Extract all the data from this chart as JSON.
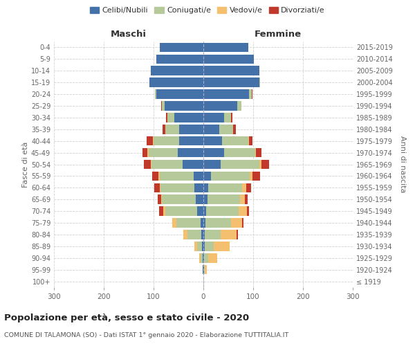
{
  "age_groups": [
    "100+",
    "95-99",
    "90-94",
    "85-89",
    "80-84",
    "75-79",
    "70-74",
    "65-69",
    "60-64",
    "55-59",
    "50-54",
    "45-49",
    "40-44",
    "35-39",
    "30-34",
    "25-29",
    "20-24",
    "15-19",
    "10-14",
    "5-9",
    "0-4"
  ],
  "birth_years": [
    "≤ 1919",
    "1920-1924",
    "1925-1929",
    "1930-1934",
    "1935-1939",
    "1940-1944",
    "1945-1949",
    "1950-1954",
    "1955-1959",
    "1960-1964",
    "1965-1969",
    "1970-1974",
    "1975-1979",
    "1980-1984",
    "1985-1989",
    "1990-1994",
    "1995-1999",
    "2000-2004",
    "2005-2009",
    "2010-2014",
    "2015-2019"
  ],
  "males": {
    "celibe": [
      0,
      1,
      2,
      3,
      4,
      6,
      12,
      15,
      18,
      20,
      42,
      52,
      48,
      48,
      58,
      78,
      95,
      108,
      105,
      95,
      87
    ],
    "coniugato": [
      0,
      1,
      4,
      10,
      28,
      48,
      65,
      68,
      68,
      68,
      62,
      58,
      52,
      28,
      14,
      5,
      2,
      0,
      0,
      0,
      0
    ],
    "vedovo": [
      0,
      0,
      2,
      5,
      8,
      8,
      4,
      2,
      2,
      2,
      2,
      2,
      1,
      0,
      0,
      0,
      0,
      0,
      0,
      0,
      0
    ],
    "divorziato": [
      0,
      0,
      0,
      0,
      0,
      1,
      8,
      6,
      10,
      13,
      13,
      10,
      13,
      6,
      3,
      2,
      0,
      0,
      0,
      0,
      0
    ]
  },
  "females": {
    "nubile": [
      0,
      1,
      2,
      3,
      3,
      4,
      6,
      8,
      10,
      15,
      35,
      42,
      38,
      32,
      42,
      68,
      92,
      112,
      112,
      102,
      90
    ],
    "coniugata": [
      0,
      2,
      8,
      18,
      32,
      52,
      65,
      65,
      68,
      78,
      78,
      62,
      52,
      28,
      14,
      8,
      5,
      2,
      0,
      0,
      0
    ],
    "vedova": [
      1,
      4,
      18,
      32,
      32,
      22,
      16,
      10,
      8,
      5,
      3,
      2,
      1,
      0,
      0,
      0,
      0,
      0,
      0,
      0,
      0
    ],
    "divorziata": [
      0,
      0,
      0,
      0,
      2,
      2,
      5,
      6,
      10,
      16,
      16,
      10,
      8,
      5,
      2,
      1,
      1,
      0,
      0,
      0,
      0
    ]
  },
  "colors": {
    "celibe": "#4472a8",
    "coniugato": "#b5c99a",
    "vedovo": "#f4c06f",
    "divorziato": "#c0392b"
  },
  "legend_labels": [
    "Celibi/Nubili",
    "Coniugati/e",
    "Vedovi/e",
    "Divorziati/e"
  ],
  "legend_colors": [
    "#4472a8",
    "#b5c99a",
    "#f4c06f",
    "#c0392b"
  ],
  "title": "Popolazione per età, sesso e stato civile - 2020",
  "subtitle": "COMUNE DI TALAMONA (SO) - Dati ISTAT 1° gennaio 2020 - Elaborazione TUTTITALIA.IT",
  "xlabel_left": "Maschi",
  "xlabel_right": "Femmine",
  "ylabel_left": "Fasce di età",
  "ylabel_right": "Anni di nascita",
  "xlim": 300,
  "bg_color": "#ffffff",
  "grid_color": "#cccccc",
  "bar_height": 0.8
}
